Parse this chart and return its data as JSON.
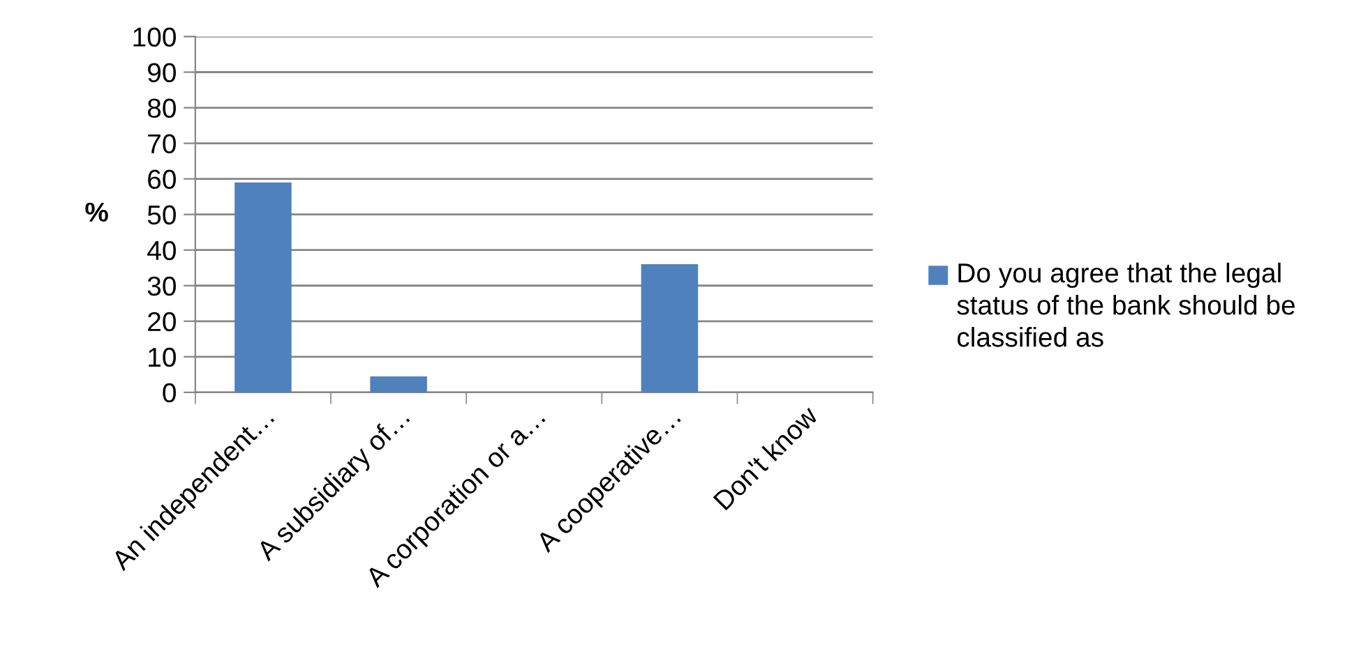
{
  "chart_data": {
    "type": "bar",
    "ylabel": "%",
    "categories": [
      "An independent…",
      "A subsidiary of…",
      "A corporation or a…",
      "A cooperative…",
      "Don't know"
    ],
    "series": [
      {
        "name": "Do you agree that the legal status of the bank should be classified as",
        "color": "#4f81bd",
        "values": [
          59,
          4.5,
          0,
          36,
          0
        ]
      }
    ],
    "ylim": [
      0,
      100
    ],
    "yticks": [
      0,
      10,
      20,
      30,
      40,
      50,
      60,
      70,
      80,
      90,
      100
    ],
    "grid": "y",
    "legend": "right"
  }
}
